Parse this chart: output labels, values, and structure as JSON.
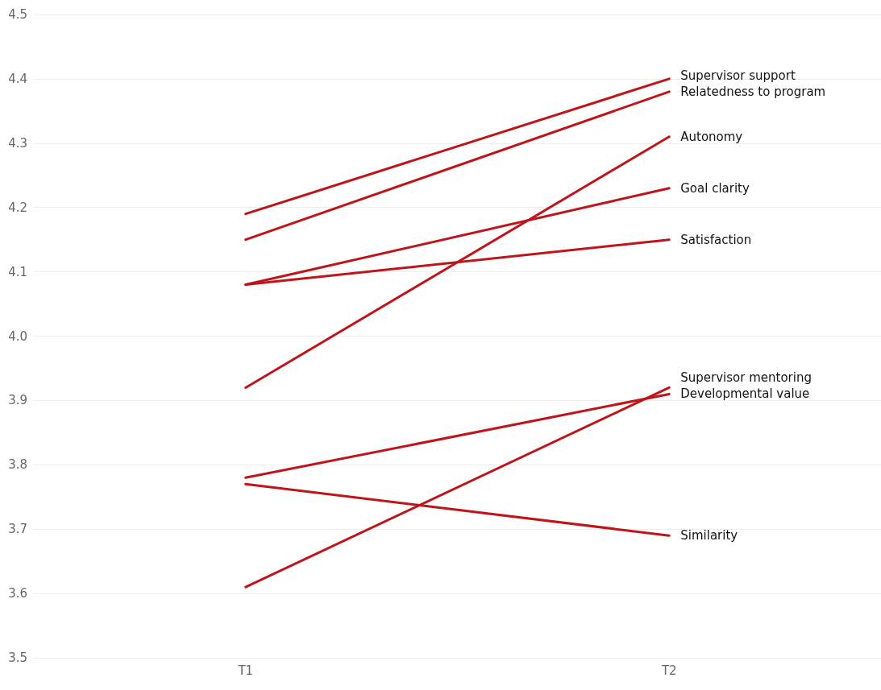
{
  "chart_data": {
    "type": "line",
    "categories": [
      "T1",
      "T2"
    ],
    "series": [
      {
        "name": "Supervisor support",
        "color": "#c0141b",
        "values": [
          4.19,
          4.4
        ]
      },
      {
        "name": "Relatedness to program",
        "color": "#c0141b",
        "values": [
          4.15,
          4.38
        ]
      },
      {
        "name": "Autonomy",
        "color": "#c0141b",
        "values": [
          3.92,
          4.31
        ]
      },
      {
        "name": "Goal clarity",
        "color": "#c0141b",
        "values": [
          4.08,
          4.23
        ]
      },
      {
        "name": "Satisfaction",
        "color": "#c0141b",
        "values": [
          4.08,
          4.15
        ]
      },
      {
        "name": "Supervisor mentoring",
        "color": "#c0141b",
        "values": [
          3.61,
          3.92
        ]
      },
      {
        "name": "Developmental value",
        "color": "#c0141b",
        "values": [
          3.78,
          3.91
        ]
      },
      {
        "name": "Similarity",
        "color": "#c0141b",
        "values": [
          3.77,
          3.69
        ]
      }
    ],
    "ylim": [
      3.5,
      4.5
    ],
    "yticks": [
      {
        "value": 3.5,
        "label": "3.5"
      },
      {
        "value": 3.6,
        "label": "3.6"
      },
      {
        "value": 3.7,
        "label": "3.7"
      },
      {
        "value": 3.8,
        "label": "3.8"
      },
      {
        "value": 3.9,
        "label": "3.9"
      },
      {
        "value": 4.0,
        "label": "4.0"
      },
      {
        "value": 4.1,
        "label": "4.1"
      },
      {
        "value": 4.2,
        "label": "4.2"
      },
      {
        "value": 4.3,
        "label": "4.3"
      },
      {
        "value": 4.4,
        "label": "4.4"
      },
      {
        "value": 4.5,
        "label": "4.5"
      }
    ],
    "grid": "y",
    "legend": false,
    "marker": "none",
    "line_style": "solid"
  }
}
